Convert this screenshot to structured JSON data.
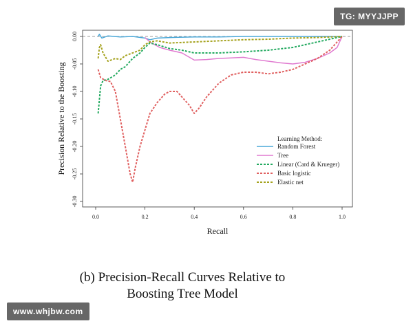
{
  "watermarks": {
    "top_right": "TG: MYYJJPP",
    "bottom_left": "www.whjbw.com"
  },
  "caption": {
    "line1": "(b) Precision-Recall Curves Relative to",
    "line2": "Boosting Tree Model"
  },
  "chart_data": {
    "type": "line",
    "title": "",
    "xlabel": "Recall",
    "ylabel": "Precision Relative to the Boosting",
    "xlim": [
      0,
      1
    ],
    "ylim": [
      -0.31,
      0.002
    ],
    "x_ticks": [
      0.0,
      0.2,
      0.4,
      0.6,
      0.8,
      1.0
    ],
    "x_tick_labels": [
      "0.0",
      "0.2",
      "0.4",
      "0.6",
      "0.8",
      "1.0"
    ],
    "y_ticks": [
      0.0,
      -0.05,
      -0.1,
      -0.15,
      -0.2,
      -0.25,
      -0.3
    ],
    "y_tick_labels": [
      "0.00",
      "-0.05",
      "-0.10",
      "-0.15",
      "-0.20",
      "-0.25",
      "-0.30"
    ],
    "grid": false,
    "legend_title": "Learning Method:",
    "legend_position": "bottom-right",
    "baseline": {
      "y": 0,
      "color": "#999999",
      "dashed": true
    },
    "series": [
      {
        "name": "Random Forest",
        "color": "#4aa8d8",
        "dashed": false,
        "x": [
          0.01,
          0.015,
          0.025,
          0.05,
          0.1,
          0.15,
          0.2,
          0.22,
          0.25,
          0.3,
          0.4,
          0.5,
          0.6,
          0.7,
          0.8,
          0.9,
          1.0
        ],
        "y": [
          0.0,
          0.004,
          -0.003,
          0.001,
          -0.001,
          0.0,
          -0.003,
          -0.006,
          -0.003,
          -0.002,
          -0.001,
          -0.001,
          0.0,
          0.0,
          0.0,
          0.0,
          0.0
        ]
      },
      {
        "name": "Tree",
        "color": "#e07ad0",
        "dashed": false,
        "x": [
          0.2,
          0.22,
          0.24,
          0.26,
          0.3,
          0.35,
          0.4,
          0.45,
          0.5,
          0.55,
          0.6,
          0.65,
          0.7,
          0.75,
          0.8,
          0.85,
          0.9,
          0.95,
          0.98,
          1.0
        ],
        "y": [
          -0.002,
          -0.01,
          -0.015,
          -0.02,
          -0.025,
          -0.03,
          -0.043,
          -0.042,
          -0.04,
          -0.039,
          -0.038,
          -0.042,
          -0.045,
          -0.048,
          -0.05,
          -0.047,
          -0.04,
          -0.03,
          -0.02,
          0.0
        ]
      },
      {
        "name": "Linear (Card & Krueger)",
        "color": "#22a95f",
        "dashed": true,
        "x": [
          0.01,
          0.02,
          0.03,
          0.05,
          0.08,
          0.1,
          0.12,
          0.15,
          0.18,
          0.2,
          0.22,
          0.25,
          0.3,
          0.35,
          0.4,
          0.5,
          0.6,
          0.7,
          0.8,
          0.9,
          0.95,
          1.0
        ],
        "y": [
          -0.14,
          -0.09,
          -0.08,
          -0.078,
          -0.07,
          -0.06,
          -0.055,
          -0.04,
          -0.03,
          -0.02,
          -0.012,
          -0.015,
          -0.022,
          -0.025,
          -0.03,
          -0.03,
          -0.028,
          -0.025,
          -0.02,
          -0.01,
          -0.005,
          0.0
        ]
      },
      {
        "name": "Basic logistic",
        "color": "#e06060",
        "dashed": true,
        "x": [
          0.01,
          0.02,
          0.04,
          0.06,
          0.08,
          0.1,
          0.12,
          0.14,
          0.15,
          0.16,
          0.18,
          0.2,
          0.22,
          0.25,
          0.28,
          0.3,
          0.33,
          0.35,
          0.38,
          0.4,
          0.42,
          0.45,
          0.5,
          0.55,
          0.6,
          0.65,
          0.7,
          0.75,
          0.8,
          0.85,
          0.9,
          0.95,
          0.98,
          1.0
        ],
        "y": [
          -0.06,
          -0.075,
          -0.08,
          -0.082,
          -0.1,
          -0.15,
          -0.2,
          -0.25,
          -0.265,
          -0.24,
          -0.2,
          -0.17,
          -0.14,
          -0.12,
          -0.105,
          -0.1,
          -0.1,
          -0.11,
          -0.125,
          -0.14,
          -0.13,
          -0.11,
          -0.085,
          -0.07,
          -0.065,
          -0.065,
          -0.068,
          -0.065,
          -0.06,
          -0.05,
          -0.04,
          -0.025,
          -0.01,
          0.0
        ]
      },
      {
        "name": "Elastic net",
        "color": "#a5a21e",
        "dashed": true,
        "x": [
          0.01,
          0.015,
          0.02,
          0.03,
          0.05,
          0.08,
          0.1,
          0.12,
          0.15,
          0.18,
          0.2,
          0.22,
          0.25,
          0.3,
          0.4,
          0.5,
          0.6,
          0.7,
          0.8,
          0.9,
          0.95,
          1.0
        ],
        "y": [
          -0.04,
          -0.02,
          -0.015,
          -0.03,
          -0.045,
          -0.04,
          -0.042,
          -0.035,
          -0.03,
          -0.025,
          -0.015,
          -0.01,
          -0.008,
          -0.012,
          -0.01,
          -0.008,
          -0.006,
          -0.005,
          -0.003,
          -0.002,
          -0.001,
          0.0
        ]
      }
    ]
  }
}
